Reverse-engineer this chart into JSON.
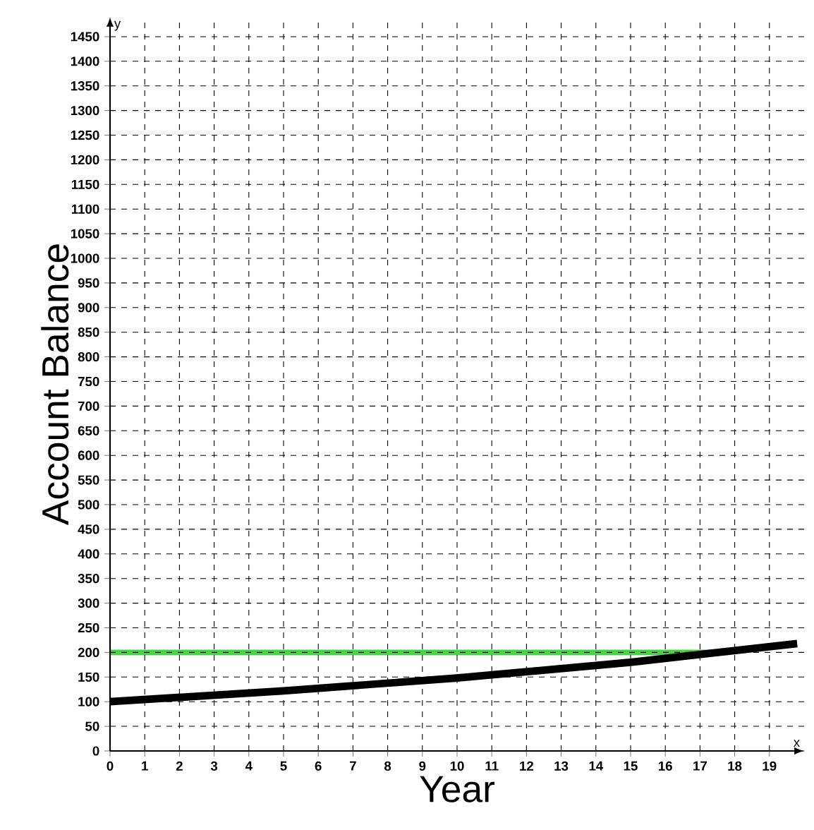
{
  "chart_data": {
    "type": "line",
    "xlabel": "Year",
    "ylabel": "Account Balance",
    "annotations": [
      "y",
      "x"
    ],
    "x": [
      0,
      5,
      10,
      15,
      19.8
    ],
    "series": [
      {
        "color": "#000000",
        "values": [
          100,
          122,
          148,
          180,
          218
        ]
      }
    ],
    "xlim": [
      0,
      20
    ],
    "ylim": [
      0,
      1490
    ],
    "xticks": [
      0,
      1,
      2,
      3,
      4,
      5,
      6,
      7,
      8,
      9,
      10,
      11,
      12,
      13,
      14,
      15,
      16,
      17,
      18,
      19
    ],
    "yticks": [
      0,
      50,
      100,
      150,
      200,
      250,
      300,
      350,
      400,
      450,
      500,
      550,
      600,
      650,
      700,
      750,
      800,
      850,
      900,
      950,
      1000,
      1050,
      1100,
      1150,
      1200,
      1250,
      1300,
      1350,
      1400,
      1450
    ],
    "grid": true,
    "line_style": "solid",
    "marker": "none",
    "ref_lines": [
      {
        "axis": "y",
        "value": 200,
        "color": "#4cd04c"
      }
    ]
  }
}
